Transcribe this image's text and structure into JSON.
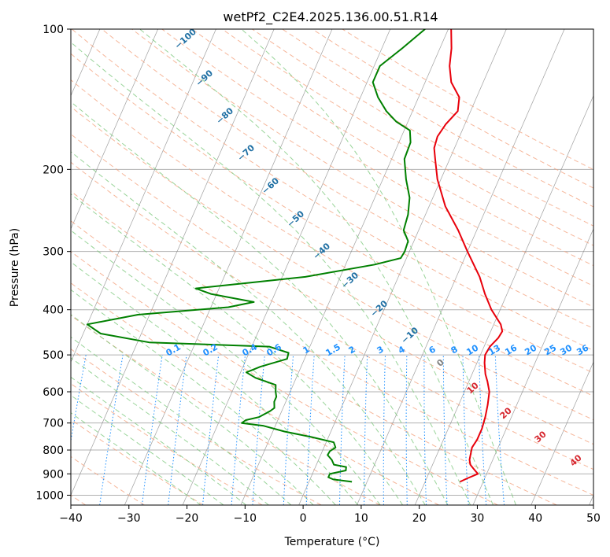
{
  "chart_data": {
    "type": "line",
    "title": "wetPf2_C2E4.2025.136.00.51.R14",
    "xlabel": "Temperature (°C)",
    "ylabel": "Pressure (hPa)",
    "xlim": [
      -40,
      50
    ],
    "ylim": [
      1050,
      100
    ],
    "y_scale": "log",
    "x_ticks": [
      "−40",
      "−30",
      "−20",
      "−10",
      "0",
      "10",
      "20",
      "30",
      "40",
      "50"
    ],
    "y_ticks": [
      "100",
      "200",
      "300",
      "400",
      "500",
      "600",
      "700",
      "800",
      "900",
      "1000"
    ],
    "grid": true,
    "skew": true,
    "series": [
      {
        "color": "#e8000b",
        "points": [
          [
            936,
            26.0
          ],
          [
            920,
            27.0
          ],
          [
            900,
            28.5
          ],
          [
            880,
            27.5
          ],
          [
            860,
            26.5
          ],
          [
            840,
            26.0
          ],
          [
            820,
            25.8
          ],
          [
            790,
            25.5
          ],
          [
            760,
            25.8
          ],
          [
            720,
            25.8
          ],
          [
            680,
            25.5
          ],
          [
            640,
            25.0
          ],
          [
            600,
            24.3
          ],
          [
            570,
            23.2
          ],
          [
            550,
            22.3
          ],
          [
            520,
            21.3
          ],
          [
            500,
            20.8
          ],
          [
            480,
            21.0
          ],
          [
            460,
            21.8
          ],
          [
            445,
            22.0
          ],
          [
            430,
            21.2
          ],
          [
            400,
            18.5
          ],
          [
            370,
            16.2
          ],
          [
            340,
            14.0
          ],
          [
            300,
            10.0
          ],
          [
            270,
            6.8
          ],
          [
            240,
            2.8
          ],
          [
            210,
            -0.6
          ],
          [
            190,
            -2.5
          ],
          [
            180,
            -3.5
          ],
          [
            170,
            -3.8
          ],
          [
            160,
            -3.3
          ],
          [
            150,
            -2.2
          ],
          [
            140,
            -3.0
          ],
          [
            130,
            -5.5
          ],
          [
            120,
            -7.0
          ],
          [
            110,
            -8.0
          ],
          [
            100,
            -9.5
          ]
        ]
      },
      {
        "color": "#008000",
        "points": [
          [
            936,
            7.4
          ],
          [
            925,
            4.0
          ],
          [
            915,
            3.0
          ],
          [
            900,
            3.0
          ],
          [
            885,
            5.5
          ],
          [
            870,
            5.3
          ],
          [
            860,
            3.0
          ],
          [
            840,
            2.3
          ],
          [
            820,
            1.2
          ],
          [
            805,
            1.3
          ],
          [
            790,
            2.0
          ],
          [
            770,
            1.3
          ],
          [
            750,
            -3.0
          ],
          [
            730,
            -8.0
          ],
          [
            710,
            -12.0
          ],
          [
            700,
            -16.0
          ],
          [
            690,
            -15.5
          ],
          [
            680,
            -13.5
          ],
          [
            660,
            -12.0
          ],
          [
            650,
            -11.5
          ],
          [
            630,
            -12.0
          ],
          [
            615,
            -12.0
          ],
          [
            600,
            -12.5
          ],
          [
            580,
            -13.0
          ],
          [
            560,
            -17.0
          ],
          [
            545,
            -19.0
          ],
          [
            530,
            -17.0
          ],
          [
            510,
            -13.0
          ],
          [
            495,
            -13.2
          ],
          [
            480,
            -17.0
          ],
          [
            470,
            -38.0
          ],
          [
            450,
            -47.0
          ],
          [
            430,
            -50.0
          ],
          [
            410,
            -42.0
          ],
          [
            395,
            -27.0
          ],
          [
            385,
            -23.0
          ],
          [
            370,
            -31.0
          ],
          [
            360,
            -34.0
          ],
          [
            350,
            -25.0
          ],
          [
            340,
            -16.0
          ],
          [
            320,
            -5.0
          ],
          [
            310,
            -1.0
          ],
          [
            300,
            -0.8
          ],
          [
            285,
            -1.0
          ],
          [
            270,
            -2.6
          ],
          [
            250,
            -3.0
          ],
          [
            230,
            -4.0
          ],
          [
            210,
            -6.0
          ],
          [
            190,
            -7.8
          ],
          [
            175,
            -8.0
          ],
          [
            165,
            -9.0
          ],
          [
            158,
            -12.0
          ],
          [
            150,
            -14.5
          ],
          [
            140,
            -17.0
          ],
          [
            130,
            -19.0
          ],
          [
            120,
            -19.0
          ],
          [
            110,
            -16.5
          ],
          [
            100,
            -14.0
          ]
        ]
      }
    ],
    "dry_adiabat_labels": [
      "−100",
      "−90",
      "−80",
      "−70",
      "−60",
      "−50",
      "−40",
      "−30",
      "−20",
      "−10",
      "0",
      "10",
      "20",
      "30",
      "40"
    ],
    "mixing_ratio_labels": [
      "0.1",
      "0.2",
      "0.4",
      "0.6",
      "1",
      "1.5",
      "2",
      "3",
      "4",
      "6",
      "8",
      "10",
      "13",
      "16",
      "20",
      "25",
      "30",
      "36"
    ],
    "colors": {
      "isotherm": "#808080",
      "dry_adiabat": "#f4a582",
      "moist_adiabat": "#7fc97f",
      "mixing_ratio": "#1e90ff",
      "isobar": "#b0b0b0",
      "label_cold": "#1f6fa3",
      "label_warm": "#d6272f",
      "label_zero": "#808080"
    }
  }
}
